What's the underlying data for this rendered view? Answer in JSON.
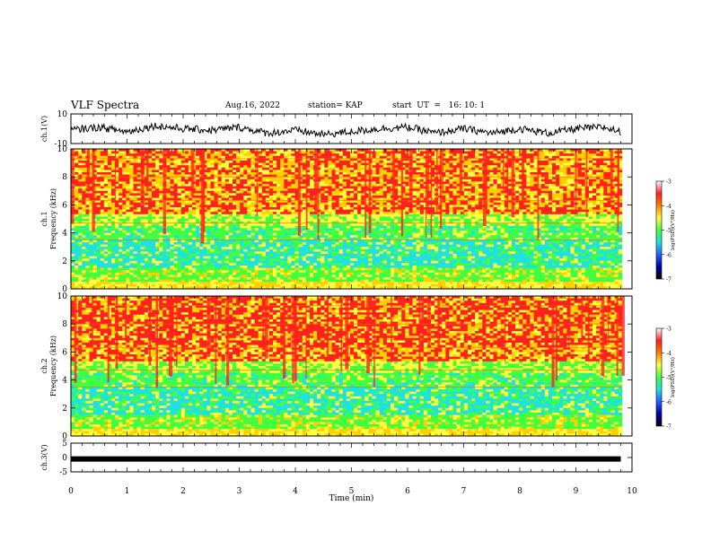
{
  "header": {
    "title": "VLF Spectra",
    "date": "Aug.16, 2022",
    "station": "station= KAP",
    "start": "start  UT  =   16: 10: 1"
  },
  "colorbar": {
    "label": "log(PSD)(V²/Hz)",
    "ticks": [
      "-3",
      "-4",
      "-5",
      "-6",
      "-7"
    ],
    "colors": [
      "#ffffff",
      "#ff2020",
      "#ffd000",
      "#ffff40",
      "#40ff40",
      "#20e0e0",
      "#2060ff",
      "#0000a0",
      "#000000"
    ]
  },
  "chart_data": [
    {
      "type": "line",
      "ylabel": "ch.1(V)",
      "ylim": [
        -10,
        10
      ],
      "yticks": [
        "10",
        "-10"
      ],
      "xlim": [
        0,
        10
      ],
      "note": "waveform amplitude trace",
      "series": [
        {
          "x": [
            0,
            0.5,
            1,
            1.5,
            2,
            2.5,
            3,
            3.5,
            4,
            4.5,
            5,
            5.5,
            6,
            6.5,
            7,
            7.5,
            8,
            8.5,
            9,
            9.5,
            9.8
          ],
          "values": [
            -1,
            1,
            -2,
            2,
            0,
            -1,
            1,
            -3,
            -1,
            -4,
            -2,
            0,
            1,
            -3,
            0,
            -3,
            0,
            -3,
            0,
            1,
            -2
          ]
        }
      ]
    },
    {
      "type": "heatmap",
      "ylabel": "ch.1\nFrequency  (kHz)",
      "ylim": [
        0,
        10
      ],
      "yticks": [
        "0",
        "2",
        "4",
        "6",
        "8",
        "10"
      ],
      "xlim": [
        0,
        10
      ]
    },
    {
      "type": "heatmap",
      "ylabel": "ch.2\nFrequency  (kHz)",
      "ylim": [
        0,
        10
      ],
      "yticks": [
        "0",
        "2",
        "4",
        "6",
        "8",
        "10"
      ],
      "xlim": [
        0,
        10
      ]
    },
    {
      "type": "line",
      "ylabel": "ch.3(V)",
      "ylim": [
        -5,
        5
      ],
      "yticks": [
        "5",
        "0",
        "-5"
      ],
      "xlim": [
        0,
        10
      ],
      "series": [
        {
          "x": [
            0,
            9.8
          ],
          "values": [
            -0.5,
            -0.5
          ]
        }
      ]
    }
  ],
  "xaxis": {
    "label": "Time  (min)",
    "ticks": [
      "0",
      "1",
      "2",
      "3",
      "4",
      "5",
      "6",
      "7",
      "8",
      "9",
      "10"
    ]
  }
}
